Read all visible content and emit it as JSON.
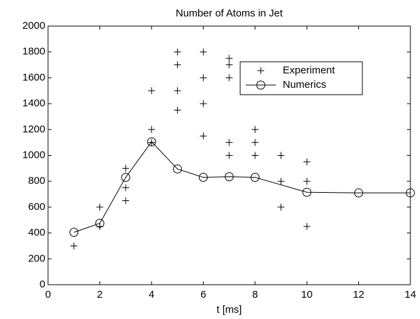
{
  "chart_data": {
    "type": "line",
    "title": "Number of Atoms in Jet",
    "x_label": "t  [ms]",
    "xlim": [
      0,
      14
    ],
    "xticks": [
      0,
      2,
      4,
      6,
      8,
      10,
      12,
      14
    ],
    "ylim": [
      0,
      2000
    ],
    "yticks": [
      0,
      200,
      400,
      600,
      800,
      1000,
      1200,
      1400,
      1600,
      1800,
      2000
    ],
    "grid": false,
    "legend": "upper right",
    "series": [
      {
        "name": "Experiment",
        "color": "#000000",
        "style": "markers",
        "marker": "plus",
        "x": [
          1,
          2,
          2,
          3,
          3,
          3,
          4,
          4,
          4,
          5,
          5,
          5,
          5,
          6,
          6,
          6,
          6,
          7,
          7,
          7,
          7,
          7,
          8,
          8,
          8,
          9,
          9,
          9,
          10,
          10,
          10
        ],
        "values": [
          300,
          600,
          450,
          900,
          750,
          650,
          1500,
          1200,
          1100,
          1800,
          1700,
          1500,
          1350,
          1800,
          1600,
          1400,
          1150,
          1750,
          1700,
          1600,
          1100,
          1000,
          1200,
          1100,
          1000,
          1000,
          800,
          600,
          950,
          800,
          450
        ]
      },
      {
        "name": "Numerics",
        "color": "#000000",
        "style": "line-markers",
        "marker": "circle",
        "x": [
          1,
          2,
          3,
          4,
          5,
          6,
          7,
          8,
          10,
          12,
          14
        ],
        "values": [
          405,
          475,
          830,
          1105,
          895,
          830,
          835,
          830,
          715,
          710,
          710
        ]
      }
    ]
  }
}
